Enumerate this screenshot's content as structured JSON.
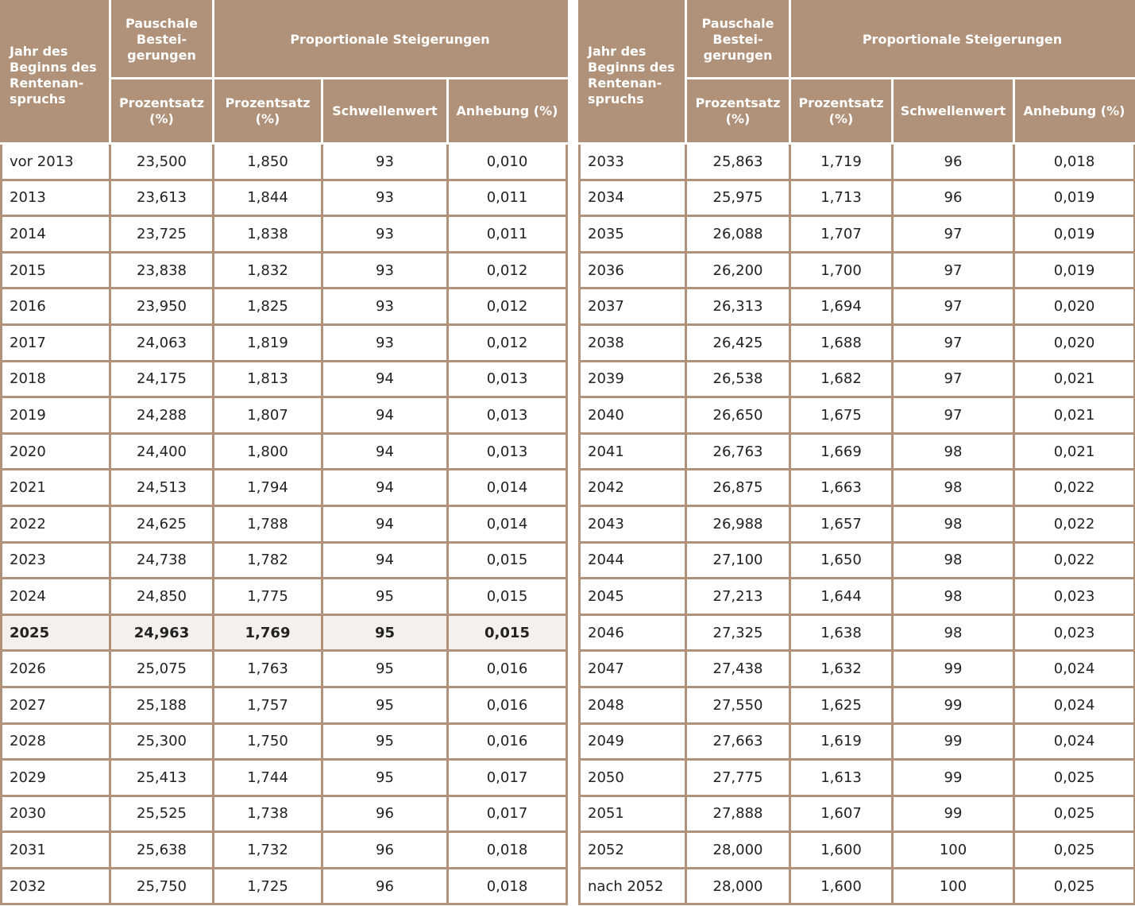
{
  "headers": {
    "year": [
      "Jahr des",
      "Beginns des",
      "Rentenan-",
      "spruchs"
    ],
    "lump": [
      "Pauschale",
      "Bestei-",
      "gerungen"
    ],
    "proportional": "Proportionale Steigerungen",
    "percent": [
      "Prozentsatz",
      "(%)"
    ],
    "threshold": "Schwellenwert",
    "increase": "Anhebung (%)"
  },
  "highlight_year": "2025",
  "left_rows": [
    [
      "vor 2013",
      "23,500",
      "1,850",
      "93",
      "0,010"
    ],
    [
      "2013",
      "23,613",
      "1,844",
      "93",
      "0,011"
    ],
    [
      "2014",
      "23,725",
      "1,838",
      "93",
      "0,011"
    ],
    [
      "2015",
      "23,838",
      "1,832",
      "93",
      "0,012"
    ],
    [
      "2016",
      "23,950",
      "1,825",
      "93",
      "0,012"
    ],
    [
      "2017",
      "24,063",
      "1,819",
      "93",
      "0,012"
    ],
    [
      "2018",
      "24,175",
      "1,813",
      "94",
      "0,013"
    ],
    [
      "2019",
      "24,288",
      "1,807",
      "94",
      "0,013"
    ],
    [
      "2020",
      "24,400",
      "1,800",
      "94",
      "0,013"
    ],
    [
      "2021",
      "24,513",
      "1,794",
      "94",
      "0,014"
    ],
    [
      "2022",
      "24,625",
      "1,788",
      "94",
      "0,014"
    ],
    [
      "2023",
      "24,738",
      "1,782",
      "94",
      "0,015"
    ],
    [
      "2024",
      "24,850",
      "1,775",
      "95",
      "0,015"
    ],
    [
      "2025",
      "24,963",
      "1,769",
      "95",
      "0,015"
    ],
    [
      "2026",
      "25,075",
      "1,763",
      "95",
      "0,016"
    ],
    [
      "2027",
      "25,188",
      "1,757",
      "95",
      "0,016"
    ],
    [
      "2028",
      "25,300",
      "1,750",
      "95",
      "0,016"
    ],
    [
      "2029",
      "25,413",
      "1,744",
      "95",
      "0,017"
    ],
    [
      "2030",
      "25,525",
      "1,738",
      "96",
      "0,017"
    ],
    [
      "2031",
      "25,638",
      "1,732",
      "96",
      "0,018"
    ],
    [
      "2032",
      "25,750",
      "1,725",
      "96",
      "0,018"
    ]
  ],
  "right_rows": [
    [
      "2033",
      "25,863",
      "1,719",
      "96",
      "0,018"
    ],
    [
      "2034",
      "25,975",
      "1,713",
      "96",
      "0,019"
    ],
    [
      "2035",
      "26,088",
      "1,707",
      "97",
      "0,019"
    ],
    [
      "2036",
      "26,200",
      "1,700",
      "97",
      "0,019"
    ],
    [
      "2037",
      "26,313",
      "1,694",
      "97",
      "0,020"
    ],
    [
      "2038",
      "26,425",
      "1,688",
      "97",
      "0,020"
    ],
    [
      "2039",
      "26,538",
      "1,682",
      "97",
      "0,021"
    ],
    [
      "2040",
      "26,650",
      "1,675",
      "97",
      "0,021"
    ],
    [
      "2041",
      "26,763",
      "1,669",
      "98",
      "0,021"
    ],
    [
      "2042",
      "26,875",
      "1,663",
      "98",
      "0,022"
    ],
    [
      "2043",
      "26,988",
      "1,657",
      "98",
      "0,022"
    ],
    [
      "2044",
      "27,100",
      "1,650",
      "98",
      "0,022"
    ],
    [
      "2045",
      "27,213",
      "1,644",
      "98",
      "0,023"
    ],
    [
      "2046",
      "27,325",
      "1,638",
      "98",
      "0,023"
    ],
    [
      "2047",
      "27,438",
      "1,632",
      "99",
      "0,024"
    ],
    [
      "2048",
      "27,550",
      "1,625",
      "99",
      "0,024"
    ],
    [
      "2049",
      "27,663",
      "1,619",
      "99",
      "0,024"
    ],
    [
      "2050",
      "27,775",
      "1,613",
      "99",
      "0,025"
    ],
    [
      "2051",
      "27,888",
      "1,607",
      "99",
      "0,025"
    ],
    [
      "2052",
      "28,000",
      "1,600",
      "100",
      "0,025"
    ],
    [
      "nach 2052",
      "28,000",
      "1,600",
      "100",
      "0,025"
    ]
  ],
  "colors": {
    "header_bg": "#b09179",
    "highlight_bg": "#f4f0ec",
    "text": "#222222"
  }
}
